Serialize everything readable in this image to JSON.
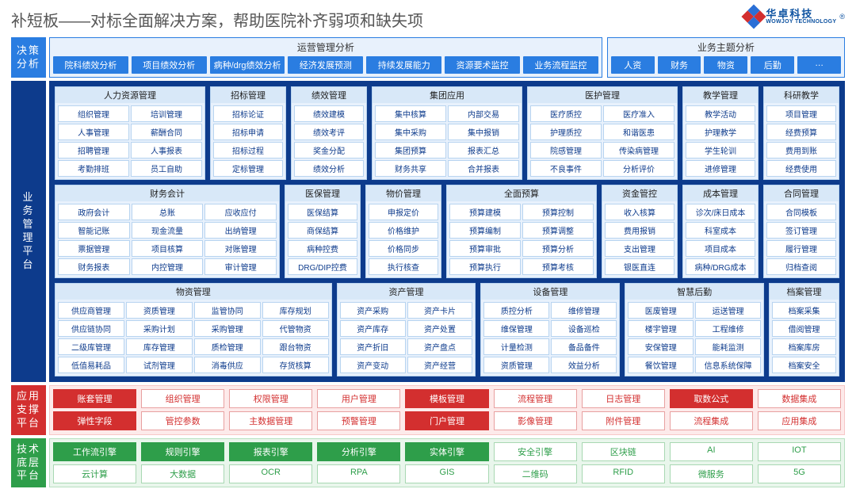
{
  "page_title": "补短板——对标全面解决方案，帮助医院补齐弱项和缺失项",
  "logo": {
    "cn": "华卓科技",
    "en": "WOWJOY TECHNOLOGY",
    "colors": [
      "#2a6fd6",
      "#2a6fd6",
      "#d32f2f",
      "#d32f2f"
    ]
  },
  "layer1": {
    "side": "决策分析",
    "panels": [
      {
        "title": "运营管理分析",
        "items": [
          "院科绩效分析",
          "项目绩效分析",
          "病种/drg绩效分析",
          "经济发展预测",
          "持续发展能力",
          "资源要术监控",
          "业务流程监控"
        ]
      },
      {
        "title": "业务主题分析",
        "items": [
          "人资",
          "财务",
          "物资",
          "后勤",
          "…"
        ]
      }
    ]
  },
  "layer2": {
    "side": "业务管理平台",
    "rows": [
      [
        {
          "title": "人力资源管理",
          "cols": 2,
          "items": [
            "组织管理",
            "培训管理",
            "人事管理",
            "薪酬合同",
            "招聘管理",
            "人事报表",
            "考勤排班",
            "员工自助"
          ]
        },
        {
          "title": "招标管理",
          "cols": 1,
          "items": [
            "招标论证",
            "招标申请",
            "招标过程",
            "定标管理"
          ]
        },
        {
          "title": "绩效管理",
          "cols": 1,
          "items": [
            "绩效建模",
            "绩效考评",
            "奖金分配",
            "绩效分析"
          ]
        },
        {
          "title": "集团应用",
          "cols": 2,
          "items": [
            "集中核算",
            "内部交易",
            "集中采购",
            "集中报销",
            "集团预算",
            "报表汇总",
            "财务共享",
            "合并报表"
          ]
        },
        {
          "title": "医护管理",
          "cols": 2,
          "items": [
            "医疗质控",
            "医疗准入",
            "护理质控",
            "和谐医患",
            "院感管理",
            "传染病管理",
            "不良事件",
            "分析评价"
          ]
        },
        {
          "title": "教学管理",
          "cols": 1,
          "items": [
            "教学活动",
            "护理教学",
            "学生轮训",
            "进修管理"
          ]
        },
        {
          "title": "科研教学",
          "cols": 1,
          "items": [
            "项目管理",
            "经费预算",
            "费用到账",
            "经费使用"
          ]
        }
      ],
      [
        {
          "title": "财务会计",
          "cols": 3,
          "items": [
            "政府会计",
            "总账",
            "应收应付",
            "智能记账",
            "现金流量",
            "出纳管理",
            "票据管理",
            "项目核算",
            "对账管理",
            "财务报表",
            "内控管理",
            "审计管理"
          ]
        },
        {
          "title": "医保管理",
          "cols": 1,
          "items": [
            "医保结算",
            "商保结算",
            "病种控费",
            "DRG/DIP控费"
          ]
        },
        {
          "title": "物价管理",
          "cols": 1,
          "items": [
            "申报定价",
            "价格维护",
            "价格同步",
            "执行核查"
          ]
        },
        {
          "title": "全面预算",
          "cols": 2,
          "items": [
            "预算建模",
            "预算控制",
            "预算编制",
            "预算调整",
            "预算审批",
            "预算分析",
            "预算执行",
            "预算考核"
          ]
        },
        {
          "title": "资金管控",
          "cols": 1,
          "items": [
            "收入核算",
            "费用报销",
            "支出管理",
            "银医直连"
          ]
        },
        {
          "title": "成本管理",
          "cols": 1,
          "items": [
            "诊次/床日成本",
            "科室成本",
            "项目成本",
            "病种/DRG成本"
          ]
        },
        {
          "title": "合同管理",
          "cols": 1,
          "items": [
            "合同模板",
            "签订管理",
            "履行管理",
            "归档查阅"
          ]
        }
      ],
      [
        {
          "title": "物资管理",
          "cols": 4,
          "items": [
            "供应商管理",
            "资质管理",
            "监管协同",
            "库存规划",
            "供应链协同",
            "采购计划",
            "采购管理",
            "代管物资",
            "二级库管理",
            "库存管理",
            "质检管理",
            "跟台物资",
            "低值易耗品",
            "试剂管理",
            "消毒供应",
            "存货核算"
          ]
        },
        {
          "title": "资产管理",
          "cols": 2,
          "items": [
            "资产采购",
            "资产卡片",
            "资产库存",
            "资产处置",
            "资产折旧",
            "资产盘点",
            "资产变动",
            "资产经营"
          ]
        },
        {
          "title": "设备管理",
          "cols": 2,
          "items": [
            "质控分析",
            "维修管理",
            "维保管理",
            "设备巡检",
            "计量检测",
            "备品备件",
            "资质管理",
            "效益分析"
          ]
        },
        {
          "title": "智慧后勤",
          "cols": 2,
          "items": [
            "医废管理",
            "运送管理",
            "楼宇管理",
            "工程维修",
            "安保管理",
            "能耗监测",
            "餐饮管理",
            "信息系统保障"
          ]
        },
        {
          "title": "档案管理",
          "cols": 1,
          "items": [
            "档案采集",
            "借阅管理",
            "档案库房",
            "档案安全"
          ]
        }
      ]
    ]
  },
  "layer3": {
    "side": "应用支撑平台",
    "rows": [
      [
        {
          "t": "账套管理",
          "f": 1
        },
        {
          "t": "组织管理",
          "f": 0
        },
        {
          "t": "权限管理",
          "f": 0
        },
        {
          "t": "用户管理",
          "f": 0
        },
        {
          "t": "模板管理",
          "f": 1
        },
        {
          "t": "流程管理",
          "f": 0
        },
        {
          "t": "日志管理",
          "f": 0
        },
        {
          "t": "取数公式",
          "f": 1
        },
        {
          "t": "数据集成",
          "f": 0
        }
      ],
      [
        {
          "t": "弹性字段",
          "f": 1
        },
        {
          "t": "管控参数",
          "f": 0
        },
        {
          "t": "主数据管理",
          "f": 0
        },
        {
          "t": "预警管理",
          "f": 0
        },
        {
          "t": "门户管理",
          "f": 1
        },
        {
          "t": "影像管理",
          "f": 0
        },
        {
          "t": "附件管理",
          "f": 0
        },
        {
          "t": "流程集成",
          "f": 0
        },
        {
          "t": "应用集成",
          "f": 0
        }
      ]
    ]
  },
  "layer4": {
    "side": "技术底层平台",
    "rows": [
      [
        {
          "t": "工作流引擎",
          "f": 1
        },
        {
          "t": "规则引擎",
          "f": 1
        },
        {
          "t": "报表引擎",
          "f": 1
        },
        {
          "t": "分析引擎",
          "f": 1
        },
        {
          "t": "实体引擎",
          "f": 1
        },
        {
          "t": "安全引擎",
          "f": 0
        },
        {
          "t": "区块链",
          "f": 0
        },
        {
          "t": "AI",
          "f": 0
        },
        {
          "t": "IOT",
          "f": 0
        }
      ],
      [
        {
          "t": "云计算",
          "f": 0
        },
        {
          "t": "大数据",
          "f": 0
        },
        {
          "t": "OCR",
          "f": 0
        },
        {
          "t": "RPA",
          "f": 0
        },
        {
          "t": "GIS",
          "f": 0
        },
        {
          "t": "二维码",
          "f": 0
        },
        {
          "t": "RFID",
          "f": 0
        },
        {
          "t": "微服务",
          "f": 0
        },
        {
          "t": "5G",
          "f": 0
        }
      ]
    ]
  },
  "colors": {
    "blue": "#2a7de1",
    "darkblue": "#0d3b8c",
    "red": "#d32f2f",
    "green": "#2e9e4a",
    "blue_bg": "#e8f1fc",
    "red_bg": "#fdeaea",
    "green_bg": "#e9f6ec"
  }
}
